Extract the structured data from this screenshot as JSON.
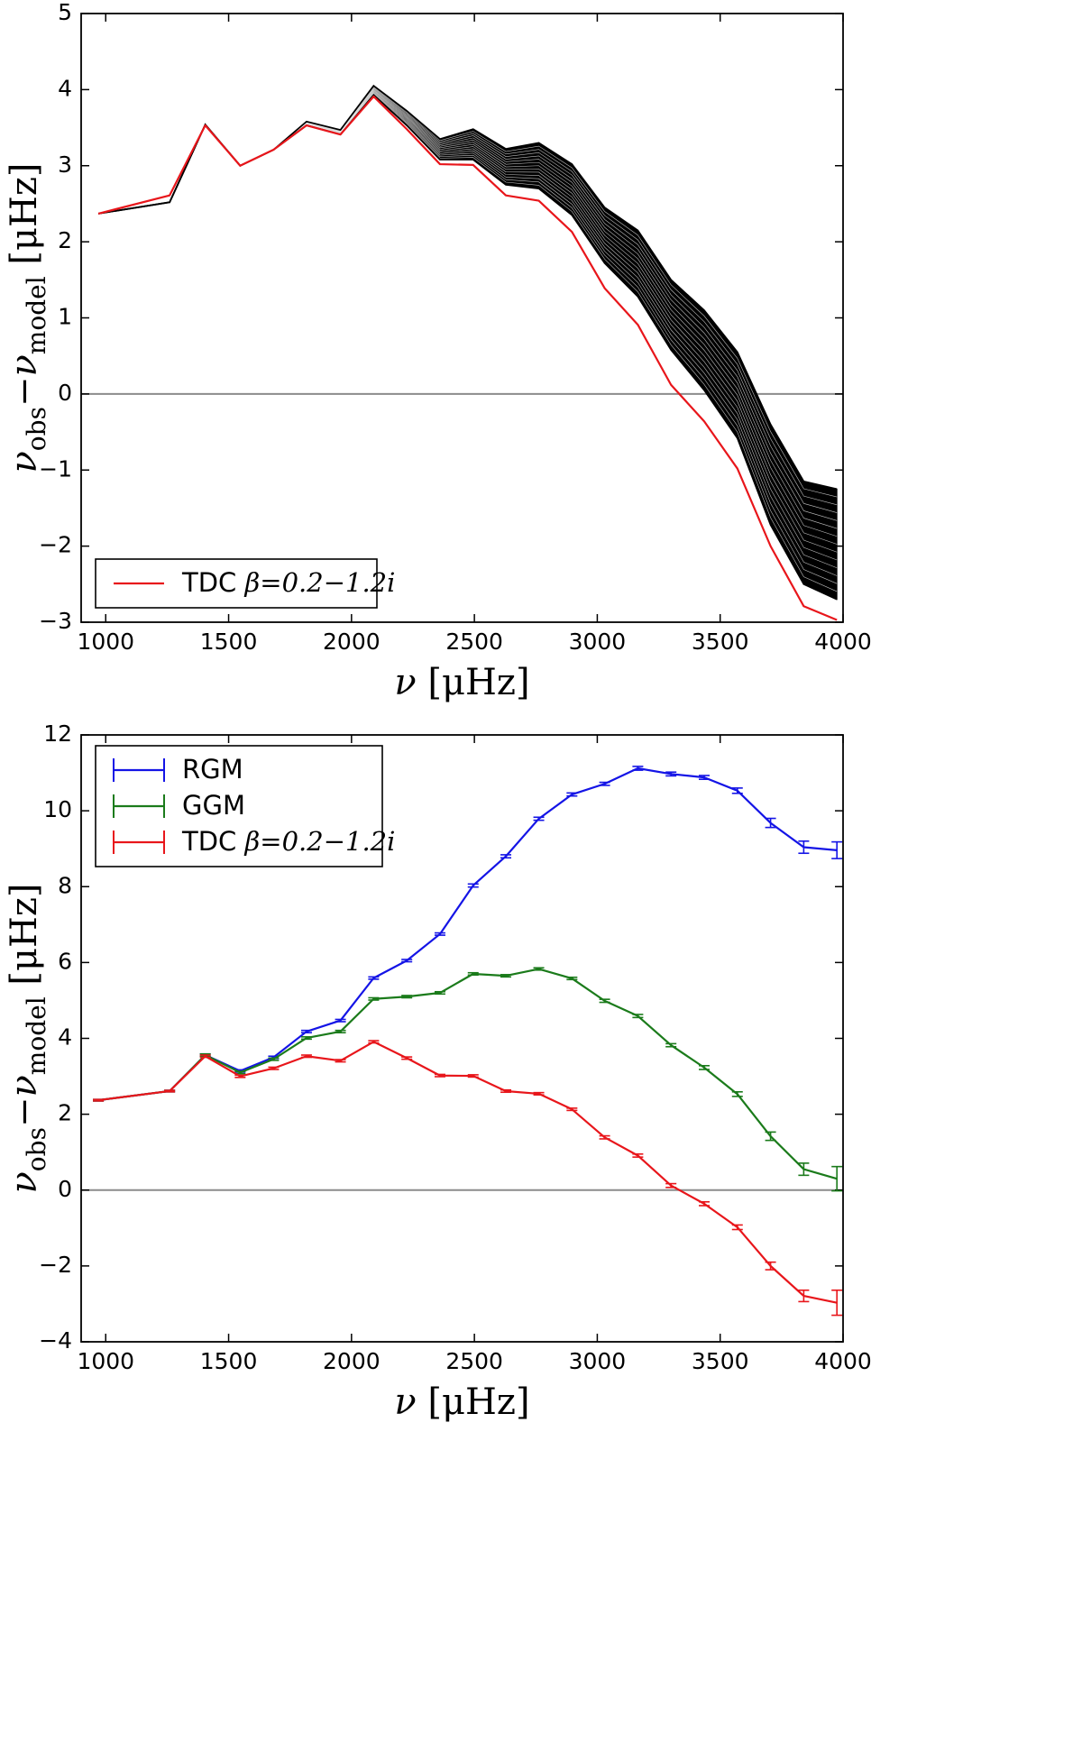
{
  "chart_data": [
    {
      "type": "line",
      "title": "",
      "xlabel": "ν [μHz]",
      "ylabel": "ν_obs−ν_model [μHz]",
      "xlim": [
        900,
        4000
      ],
      "ylim": [
        -3,
        5
      ],
      "xticks": [
        "1000",
        "1500",
        "2000",
        "2500",
        "3000",
        "3500",
        "4000"
      ],
      "yticks": [
        "−3",
        "−2",
        "−1",
        "0",
        "1",
        "2",
        "3",
        "4",
        "5"
      ],
      "reference_line": 0,
      "x": [
        970,
        1260,
        1405,
        1547,
        1683,
        1817,
        1955,
        2090,
        2225,
        2360,
        2495,
        2628,
        2762,
        2897,
        3030,
        3165,
        3300,
        3435,
        3570,
        3705,
        3840,
        3975
      ],
      "series": [
        {
          "name": "",
          "color": "#000000",
          "role": "ensemble_upper",
          "values": [
            2.37,
            2.52,
            3.54,
            3.0,
            3.21,
            3.58,
            3.47,
            4.05,
            3.72,
            3.35,
            3.48,
            3.22,
            3.3,
            3.02,
            2.45,
            2.15,
            1.5,
            1.1,
            0.55,
            -0.4,
            -1.15,
            -1.25
          ]
        },
        {
          "name": "",
          "color": "#000000",
          "role": "ensemble_lower",
          "values": [
            2.37,
            2.52,
            3.54,
            3.0,
            3.21,
            3.53,
            3.41,
            3.93,
            3.53,
            3.08,
            3.08,
            2.75,
            2.7,
            2.35,
            1.72,
            1.28,
            0.58,
            0.05,
            -0.58,
            -1.72,
            -2.5,
            -2.7
          ]
        },
        {
          "name": "TDC β=0.2−1.2i",
          "color": "#e8161b",
          "values": [
            2.37,
            2.61,
            3.53,
            3.0,
            3.21,
            3.53,
            3.41,
            3.91,
            3.48,
            3.02,
            3.01,
            2.61,
            2.54,
            2.13,
            1.39,
            0.91,
            0.12,
            -0.36,
            -0.98,
            -2.0,
            -2.79,
            -2.97
          ]
        }
      ],
      "legend": {
        "position": "lower-left",
        "entries": [
          "TDC β=0.2−1.2i"
        ]
      }
    },
    {
      "type": "line",
      "title": "",
      "xlabel": "ν [μHz]",
      "ylabel": "ν_obs−ν_model [μHz]",
      "xlim": [
        900,
        4000
      ],
      "ylim": [
        -4,
        12
      ],
      "xticks": [
        "1000",
        "1500",
        "2000",
        "2500",
        "3000",
        "3500",
        "4000"
      ],
      "yticks": [
        "−4",
        "−2",
        "0",
        "2",
        "4",
        "6",
        "8",
        "10",
        "12"
      ],
      "reference_line": 0,
      "x": [
        970,
        1260,
        1405,
        1547,
        1683,
        1817,
        1955,
        2090,
        2225,
        2360,
        2495,
        2628,
        2762,
        2897,
        3030,
        3165,
        3300,
        3435,
        3570,
        3705,
        3840,
        3975
      ],
      "series": [
        {
          "name": "RGM",
          "color": "#1414e6",
          "values": [
            2.37,
            2.61,
            3.56,
            3.14,
            3.5,
            4.18,
            4.47,
            5.59,
            6.05,
            6.75,
            8.03,
            8.8,
            9.79,
            10.43,
            10.71,
            11.12,
            10.97,
            10.88,
            10.53,
            9.68,
            9.04,
            8.96
          ],
          "errors": [
            0.02,
            0.02,
            0.03,
            0.03,
            0.03,
            0.03,
            0.03,
            0.03,
            0.03,
            0.03,
            0.04,
            0.04,
            0.04,
            0.04,
            0.04,
            0.05,
            0.05,
            0.05,
            0.07,
            0.12,
            0.16,
            0.22
          ]
        },
        {
          "name": "GGM",
          "color": "#1b7b1b",
          "values": [
            2.37,
            2.61,
            3.56,
            3.1,
            3.45,
            4.01,
            4.18,
            5.04,
            5.1,
            5.2,
            5.7,
            5.65,
            5.83,
            5.58,
            4.99,
            4.59,
            3.82,
            3.23,
            2.53,
            1.42,
            0.55,
            0.3
          ],
          "errors": [
            0.02,
            0.02,
            0.03,
            0.03,
            0.03,
            0.03,
            0.03,
            0.03,
            0.03,
            0.03,
            0.03,
            0.03,
            0.03,
            0.03,
            0.04,
            0.04,
            0.04,
            0.05,
            0.06,
            0.11,
            0.16,
            0.32
          ]
        },
        {
          "name": "TDC β=0.2−1.2i",
          "color": "#e8161b",
          "values": [
            2.37,
            2.61,
            3.53,
            3.0,
            3.21,
            3.53,
            3.41,
            3.91,
            3.48,
            3.02,
            3.01,
            2.61,
            2.54,
            2.13,
            1.39,
            0.91,
            0.12,
            -0.36,
            -0.98,
            -2.0,
            -2.79,
            -2.97
          ],
          "errors": [
            0.02,
            0.02,
            0.03,
            0.03,
            0.03,
            0.03,
            0.03,
            0.03,
            0.03,
            0.03,
            0.03,
            0.03,
            0.03,
            0.03,
            0.04,
            0.04,
            0.05,
            0.05,
            0.06,
            0.1,
            0.15,
            0.33
          ]
        }
      ],
      "legend": {
        "position": "top-left",
        "entries": [
          "RGM",
          "GGM",
          "TDC β=0.2−1.2i"
        ]
      }
    }
  ]
}
